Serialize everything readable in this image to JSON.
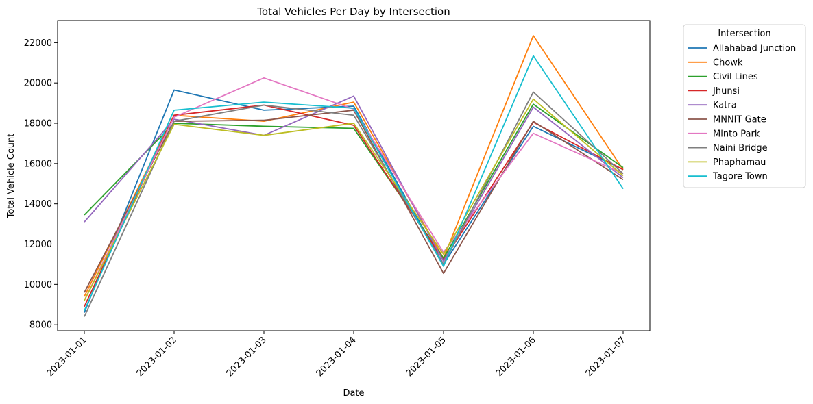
{
  "chart_data": {
    "type": "line",
    "title": "Total Vehicles Per Day by Intersection",
    "xlabel": "Date",
    "ylabel": "Total Vehicle Count",
    "categories": [
      "2023-01-01",
      "2023-01-02",
      "2023-01-03",
      "2023-01-04",
      "2023-01-05",
      "2023-01-06",
      "2023-01-07"
    ],
    "ylim": [
      7700,
      23100
    ],
    "yticks": [
      8000,
      10000,
      12000,
      14000,
      16000,
      18000,
      20000,
      22000
    ],
    "grid": false,
    "legend_title": "Intersection",
    "legend_position": "outside right, top",
    "series": [
      {
        "name": "Allahabad Junction",
        "color": "#1f77b4",
        "values": [
          8600,
          19650,
          18650,
          18850,
          11000,
          17850,
          15700
        ]
      },
      {
        "name": "Chowk",
        "color": "#ff7f0e",
        "values": [
          9400,
          18400,
          18100,
          19050,
          11300,
          22350,
          15700
        ]
      },
      {
        "name": "Civil Lines",
        "color": "#2ca02c",
        "values": [
          13450,
          18000,
          17850,
          17750,
          11300,
          18950,
          15800
        ]
      },
      {
        "name": "Jhunsi",
        "color": "#d62728",
        "values": [
          8900,
          18400,
          18900,
          17900,
          11200,
          18050,
          15700
        ]
      },
      {
        "name": "Katra",
        "color": "#9467bd",
        "values": [
          13100,
          18200,
          17400,
          19350,
          11150,
          18800,
          15300
        ]
      },
      {
        "name": "MNNIT Gate",
        "color": "#8c564b",
        "values": [
          9600,
          18100,
          18150,
          18650,
          10550,
          18100,
          15200
        ]
      },
      {
        "name": "Minto Park",
        "color": "#e377c2",
        "values": [
          9200,
          18300,
          20250,
          18700,
          11600,
          17500,
          15500
        ]
      },
      {
        "name": "Naini Bridge",
        "color": "#7f7f7f",
        "values": [
          8400,
          18100,
          18900,
          18400,
          11000,
          19550,
          15500
        ]
      },
      {
        "name": "Phaphamau",
        "color": "#bcbd22",
        "values": [
          9200,
          17950,
          17400,
          18000,
          11500,
          19200,
          15400
        ]
      },
      {
        "name": "Tagore Town",
        "color": "#17becf",
        "values": [
          8700,
          18650,
          19050,
          18750,
          10900,
          21350,
          14750
        ]
      }
    ]
  }
}
